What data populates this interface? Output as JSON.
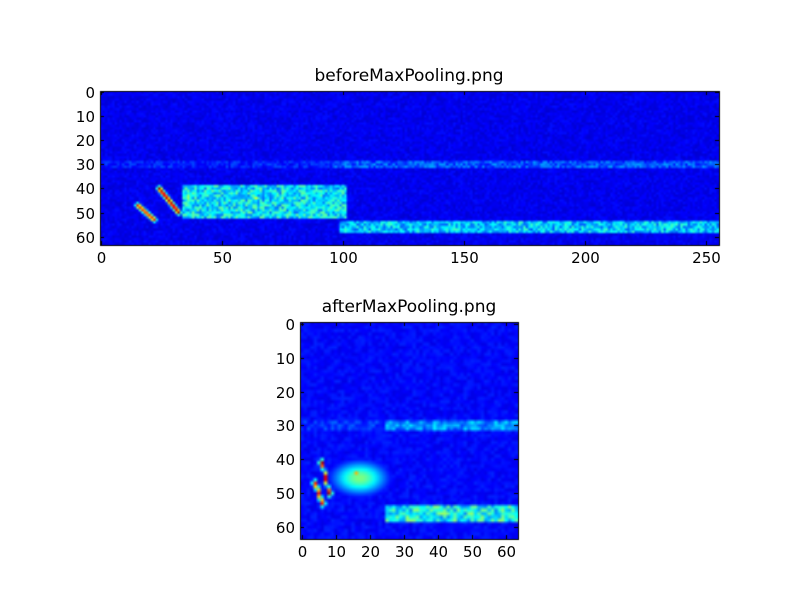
{
  "chart_data": [
    {
      "type": "heatmap",
      "title": "beforeMaxPooling.png",
      "colormap": "jet",
      "xlim": [
        -0.5,
        255.5
      ],
      "ylim": [
        63.5,
        -0.5
      ],
      "xticks": [
        0,
        50,
        100,
        150,
        200,
        250
      ],
      "yticks": [
        0,
        10,
        20,
        30,
        40,
        50,
        60
      ],
      "background_level": 0.08,
      "features": [
        {
          "x": [
            0,
            100
          ],
          "y": [
            30,
            30
          ],
          "level": 0.18
        },
        {
          "x": [
            100,
            256
          ],
          "y": [
            29,
            31
          ],
          "level": 0.25
        },
        {
          "x": [
            35,
            100
          ],
          "y": [
            40,
            51
          ],
          "level": 0.42
        },
        {
          "x": [
            102,
            256
          ],
          "y": [
            54,
            58
          ],
          "level": 0.38
        },
        {
          "x": [
            15,
            22
          ],
          "y": [
            47,
            53
          ],
          "level": 0.85
        },
        {
          "x": [
            24,
            32
          ],
          "y": [
            40,
            50
          ],
          "level": 0.95
        },
        {
          "x": [
            34,
            38
          ],
          "y": [
            42,
            45
          ],
          "level": 0.6
        },
        {
          "x": [
            62,
            66
          ],
          "y": [
            43,
            45
          ],
          "level": 0.6
        },
        {
          "x": [
            165,
            172
          ],
          "y": [
            56,
            57
          ],
          "level": 0.55
        }
      ]
    },
    {
      "type": "heatmap",
      "title": "afterMaxPooling.png",
      "colormap": "jet",
      "xlim": [
        -0.5,
        63.5
      ],
      "ylim": [
        63.5,
        -0.5
      ],
      "xticks": [
        0,
        10,
        20,
        30,
        40,
        50,
        60
      ],
      "yticks": [
        0,
        10,
        20,
        30,
        40,
        50,
        60
      ],
      "background_level": 0.1,
      "features": [
        {
          "x": [
            0,
            25
          ],
          "y": [
            30,
            30
          ],
          "level": 0.2
        },
        {
          "x": [
            25,
            64
          ],
          "y": [
            29,
            31
          ],
          "level": 0.32
        },
        {
          "x": [
            8,
            26
          ],
          "y": [
            40,
            51
          ],
          "level": 0.5
        },
        {
          "x": [
            25,
            64
          ],
          "y": [
            54,
            58
          ],
          "level": 0.45
        },
        {
          "x": [
            4,
            6
          ],
          "y": [
            47,
            53
          ],
          "level": 0.85
        },
        {
          "x": [
            6,
            8
          ],
          "y": [
            41,
            50
          ],
          "level": 0.95
        },
        {
          "x": [
            15,
            17
          ],
          "y": [
            43,
            45
          ],
          "level": 0.7
        },
        {
          "x": [
            40,
            43
          ],
          "y": [
            55,
            57
          ],
          "level": 0.6
        }
      ]
    }
  ]
}
